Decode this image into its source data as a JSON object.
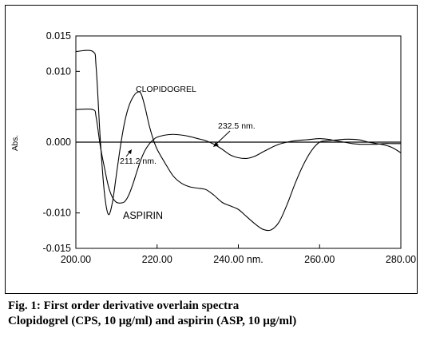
{
  "chart_data": {
    "type": "line",
    "title": "",
    "xlabel": "240.00 nm.",
    "ylabel": "Abs.",
    "xlim": [
      200,
      280
    ],
    "ylim": [
      -0.015,
      0.015
    ],
    "x_ticks": [
      "200.00",
      "220.00",
      "240.00 nm.",
      "260.00",
      "280.00"
    ],
    "y_ticks": [
      "0.015",
      "0.010",
      "0.000",
      "-0.010",
      "-0.015"
    ],
    "zero_line": true,
    "series": [
      {
        "name": "CLOPIDOGREL",
        "x": [
          200,
          204.2,
          205,
          206,
          207,
          208,
          209,
          210,
          211,
          212,
          213,
          214,
          215,
          216,
          217,
          218,
          219,
          220,
          222,
          224,
          226,
          228,
          230,
          232,
          234,
          236,
          238,
          240,
          242,
          244,
          246,
          248,
          250,
          252,
          254,
          256,
          258,
          260,
          262,
          264,
          266,
          268,
          270,
          272,
          274,
          276,
          278,
          280
        ],
        "y": [
          0.0128,
          0.0128,
          0.0105,
          0.0005,
          -0.007,
          -0.0102,
          -0.0085,
          -0.0045,
          -0.0005,
          0.0028,
          0.005,
          0.0063,
          0.007,
          0.0069,
          0.005,
          0.0025,
          0.0005,
          -0.001,
          -0.003,
          -0.0048,
          -0.0058,
          -0.0063,
          -0.0065,
          -0.0067,
          -0.0075,
          -0.0085,
          -0.009,
          -0.0095,
          -0.0105,
          -0.0115,
          -0.0123,
          -0.0124,
          -0.0113,
          -0.0088,
          -0.0058,
          -0.0032,
          -0.0012,
          0.0,
          0.0002,
          0.0003,
          0.0004,
          0.0004,
          0.0003,
          0.0,
          -0.0002,
          -0.0004,
          -0.0008,
          -0.0015
        ]
      },
      {
        "name": "ASPIRIN",
        "x": [
          200,
          204.2,
          205,
          206,
          207,
          208,
          209,
          210,
          211,
          212,
          213,
          214,
          215,
          216,
          217,
          218,
          219,
          220,
          222,
          224,
          226,
          228,
          230,
          232,
          234,
          236,
          238,
          240,
          242,
          244,
          246,
          248,
          250,
          252,
          254,
          256,
          258,
          260,
          262,
          264,
          266,
          268,
          270,
          272,
          274,
          276,
          278,
          280
        ],
        "y": [
          0.0046,
          0.0046,
          0.0035,
          -0.0005,
          -0.0035,
          -0.0062,
          -0.0078,
          -0.0085,
          -0.0086,
          -0.0084,
          -0.0075,
          -0.006,
          -0.0042,
          -0.0025,
          -0.0012,
          -0.0003,
          0.0003,
          0.0007,
          0.001,
          0.0011,
          0.001,
          0.0008,
          0.0005,
          0.0002,
          -0.0003,
          -0.001,
          -0.0018,
          -0.0022,
          -0.0023,
          -0.002,
          -0.0014,
          -0.0008,
          -0.0003,
          0.0,
          0.0002,
          0.0003,
          0.0004,
          0.0005,
          0.0004,
          0.0002,
          0.0,
          -0.0002,
          -0.0003,
          -0.0003,
          -0.0003,
          -0.0002,
          -0.0002,
          -0.0002
        ]
      }
    ],
    "annotations": {
      "clopidogrel_label": "CLOPIDOGREL",
      "aspirin_label": "ASPIRIN",
      "isosbestic_1": "211.2 nm.",
      "isosbestic_2": "232.5 nm."
    }
  },
  "caption": {
    "line1": "Fig. 1: First order derivative overlain spectra",
    "line2": "Clopidogrel (CPS, 10 μg/ml) and aspirin (ASP, 10 μg/ml)"
  }
}
